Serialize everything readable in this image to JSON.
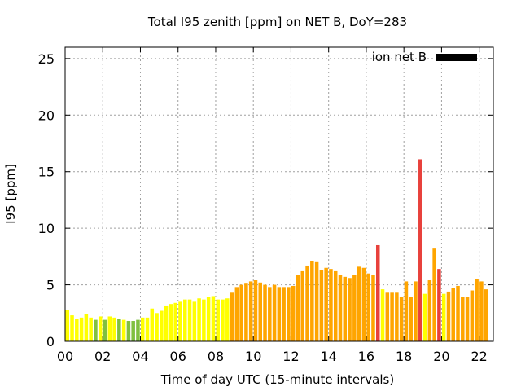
{
  "chart_data": {
    "type": "bar",
    "title": "Total I95 zenith [ppm] on NET B, DoY=283",
    "xlabel": "Time of day UTC (15-minute intervals)",
    "ylabel": "I95 [ppm]",
    "ylim": [
      0,
      26
    ],
    "xlim": [
      0,
      22.75
    ],
    "yticks": [
      0,
      5,
      10,
      15,
      20,
      25
    ],
    "xticks": [
      {
        "v": 0,
        "label": "00"
      },
      {
        "v": 2,
        "label": "02"
      },
      {
        "v": 4,
        "label": "04"
      },
      {
        "v": 6,
        "label": "06"
      },
      {
        "v": 8,
        "label": "08"
      },
      {
        "v": 10,
        "label": "10"
      },
      {
        "v": 12,
        "label": "12"
      },
      {
        "v": 14,
        "label": "14"
      },
      {
        "v": 16,
        "label": "16"
      },
      {
        "v": 18,
        "label": "18"
      },
      {
        "v": 20,
        "label": "20"
      },
      {
        "v": 22,
        "label": "22"
      }
    ],
    "grid": true,
    "legend": {
      "label": "ion net B",
      "color": "#000000",
      "position": "top-right"
    },
    "interval_hours": 0.25,
    "colors": {
      "G": "#80c040",
      "Y": "#ffff00",
      "O": "#ffa500",
      "R": "#e8413c"
    },
    "values": [
      2.8,
      2.3,
      2.0,
      2.1,
      2.4,
      2.1,
      1.9,
      2.2,
      1.9,
      2.2,
      2.1,
      2.0,
      1.9,
      1.8,
      1.8,
      1.9,
      2.1,
      2.1,
      2.9,
      2.5,
      2.7,
      3.1,
      3.3,
      3.4,
      3.5,
      3.7,
      3.7,
      3.5,
      3.8,
      3.7,
      3.9,
      4.0,
      3.7,
      3.7,
      3.8,
      4.3,
      4.8,
      5.0,
      5.1,
      5.3,
      5.4,
      5.2,
      5.0,
      4.8,
      5.0,
      4.8,
      4.8,
      4.8,
      4.9,
      5.9,
      6.2,
      6.7,
      7.1,
      7.0,
      6.3,
      6.5,
      6.4,
      6.2,
      5.9,
      5.7,
      5.6,
      5.9,
      6.6,
      6.5,
      6.0,
      5.9,
      8.5,
      4.6,
      4.3,
      4.3,
      4.3,
      3.9,
      5.3,
      3.9,
      5.3,
      16.1,
      4.2,
      5.4,
      8.2,
      6.4,
      4.2,
      4.4,
      4.7,
      4.9,
      3.9,
      3.9,
      4.5,
      5.5,
      5.3,
      4.6
    ],
    "bar_colors": "YYYYYYGYGYYGYGGGYYYYYYYYYYYYYYYYYYYOOOOOOOOOOOOOOOOOOOOOOOOOOOOOOORYOOOOOOORYOORYOOOOOOOOO"
  }
}
